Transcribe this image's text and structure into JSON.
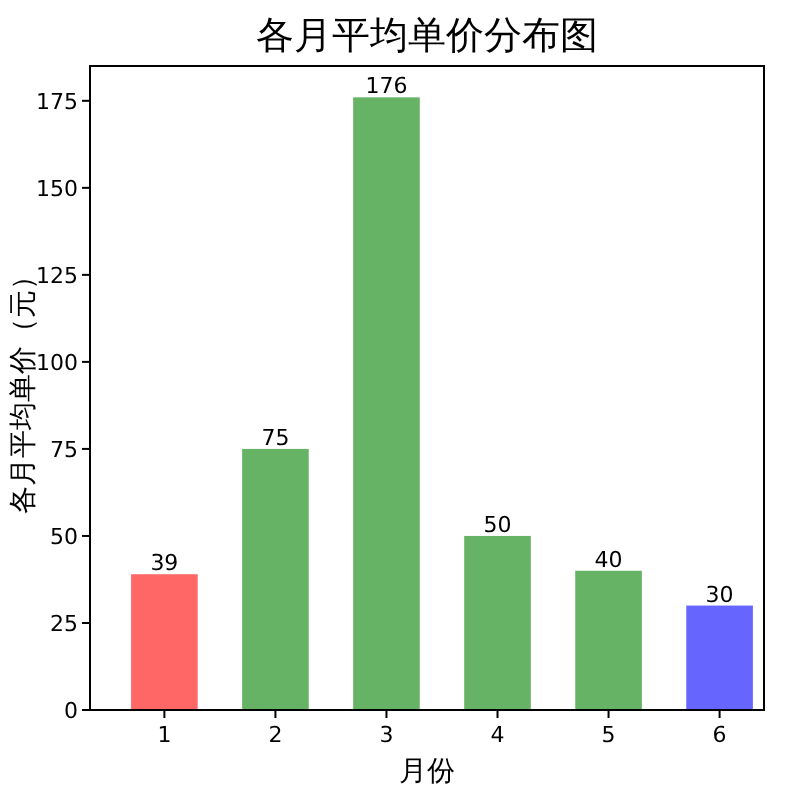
{
  "chart_data": {
    "type": "bar",
    "title": "各月平均单价分布图",
    "xlabel": "月份",
    "ylabel": "各月平均单价（元）",
    "categories": [
      "1",
      "2",
      "3",
      "4",
      "5",
      "6"
    ],
    "values": [
      39,
      75,
      176,
      50,
      40,
      30
    ],
    "colors": [
      "#ff6666",
      "#66b366",
      "#66b366",
      "#66b366",
      "#66b366",
      "#6666ff"
    ],
    "ylim": [
      0,
      185
    ],
    "yticks": [
      0,
      25,
      50,
      75,
      100,
      125,
      150,
      175
    ],
    "data_labels": true
  }
}
